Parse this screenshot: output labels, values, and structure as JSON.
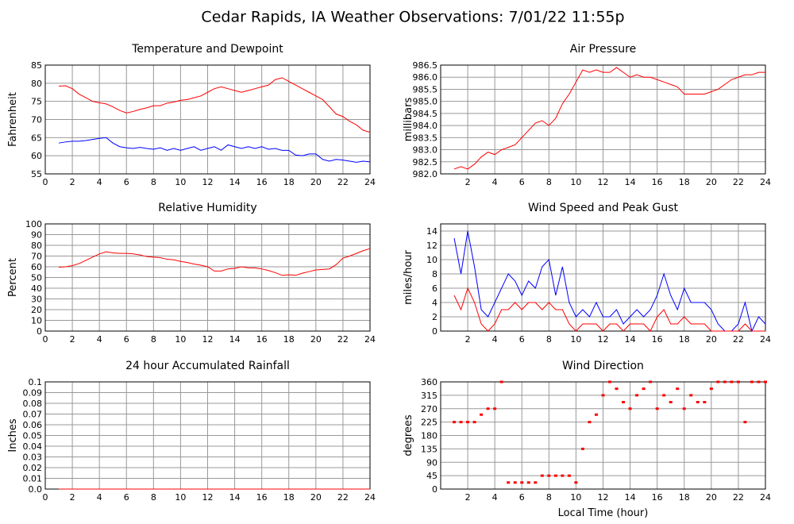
{
  "title": "Cedar Rapids, IA Weather Observations: 7/01/22 11:55p",
  "chart_data": [
    {
      "type": "line",
      "title": "Temperature and Dewpoint",
      "y_label": "Fahrenheit",
      "x": [
        1,
        1.5,
        2,
        2.5,
        3,
        3.5,
        4,
        4.5,
        5,
        5.5,
        6,
        6.5,
        7,
        7.5,
        8,
        8.5,
        9,
        9.5,
        10,
        10.5,
        11,
        11.5,
        12,
        12.5,
        13,
        13.5,
        14,
        14.5,
        15,
        15.5,
        16,
        16.5,
        17,
        17.5,
        18,
        18.5,
        19,
        19.5,
        20,
        20.5,
        21,
        21.5,
        22,
        22.5,
        23,
        23.5,
        24
      ],
      "series": [
        {
          "color": "#ff0000",
          "values": [
            79.2,
            79.3,
            78.5,
            77,
            76,
            75,
            74.6,
            74.3,
            73.5,
            72.5,
            71.8,
            72.2,
            72.8,
            73.2,
            73.8,
            73.8,
            74.5,
            74.8,
            75.3,
            75.5,
            76,
            76.5,
            77.5,
            78.5,
            79,
            78.5,
            78,
            77.5,
            78,
            78.5,
            79,
            79.5,
            81,
            81.5,
            80.5,
            79.5,
            78.5,
            77.5,
            76.5,
            75.5,
            73.5,
            71.5,
            70.8,
            69.5,
            68.5,
            67,
            66.5
          ]
        },
        {
          "color": "#0000ff",
          "values": [
            63.5,
            63.8,
            64,
            64,
            64.2,
            64.5,
            64.8,
            65,
            63.5,
            62.5,
            62.2,
            62,
            62.3,
            62,
            61.8,
            62.2,
            61.5,
            62,
            61.5,
            62,
            62.5,
            61.5,
            62,
            62.5,
            61.5,
            63,
            62.5,
            62,
            62.5,
            62,
            62.5,
            61.8,
            62,
            61.5,
            61.5,
            60.2,
            60,
            60.5,
            60.5,
            59,
            58.5,
            59,
            58.8,
            58.5,
            58.2,
            58.5,
            58.3
          ]
        }
      ],
      "xlim": [
        0,
        24
      ],
      "xticks": [
        0,
        2,
        4,
        6,
        8,
        10,
        12,
        14,
        16,
        18,
        20,
        22,
        24
      ],
      "ylim": [
        55,
        85
      ],
      "yticks": [
        55,
        60,
        65,
        70,
        75,
        80,
        85
      ],
      "grid": true
    },
    {
      "type": "line",
      "title": "Air Pressure",
      "y_label": "millibars",
      "x": [
        1,
        1.5,
        2,
        2.5,
        3,
        3.5,
        4,
        4.5,
        5,
        5.5,
        6,
        6.5,
        7,
        7.5,
        8,
        8.5,
        9,
        9.5,
        10,
        10.5,
        11,
        11.5,
        12,
        12.5,
        13,
        13.5,
        14,
        14.5,
        15,
        15.5,
        16,
        16.5,
        17,
        17.5,
        18,
        18.5,
        19,
        19.5,
        20,
        20.5,
        21,
        21.5,
        22,
        22.5,
        23,
        23.5,
        24
      ],
      "series": [
        {
          "color": "#ff0000",
          "values": [
            982.2,
            982.3,
            982.2,
            982.4,
            982.7,
            982.9,
            982.8,
            983.0,
            983.1,
            983.2,
            983.5,
            983.8,
            984.1,
            984.2,
            984.0,
            984.3,
            984.9,
            985.3,
            985.8,
            986.3,
            986.2,
            986.3,
            986.2,
            986.2,
            986.4,
            986.2,
            986.0,
            986.1,
            986.0,
            986.0,
            985.9,
            985.8,
            985.7,
            985.6,
            985.3,
            985.3,
            985.3,
            985.3,
            985.4,
            985.5,
            985.7,
            985.9,
            986.0,
            986.1,
            986.1,
            986.2,
            986.2
          ]
        }
      ],
      "xlim": [
        0,
        24
      ],
      "xticks": [
        2,
        4,
        6,
        8,
        10,
        12,
        14,
        16,
        18,
        20,
        22,
        24
      ],
      "ylim": [
        982,
        986.5
      ],
      "yticks": [
        {
          "value": 982,
          "label": "982.0"
        },
        982.5,
        {
          "value": 983,
          "label": "983.0"
        },
        983.5,
        {
          "value": 984,
          "label": "984.0"
        },
        984.5,
        {
          "value": 985,
          "label": "985.0"
        },
        985.5,
        {
          "value": 986,
          "label": "986.0"
        },
        986.5
      ],
      "grid": true
    },
    {
      "type": "line",
      "title": "Relative Humidity",
      "y_label": "Percent",
      "x": [
        1,
        1.5,
        2,
        2.5,
        3,
        3.5,
        4,
        4.5,
        5,
        5.5,
        6,
        6.5,
        7,
        7.5,
        8,
        8.5,
        9,
        9.5,
        10,
        10.5,
        11,
        11.5,
        12,
        12.5,
        13,
        13.5,
        14,
        14.5,
        15,
        15.5,
        16,
        16.5,
        17,
        17.5,
        18,
        18.5,
        19,
        19.5,
        20,
        20.5,
        21,
        21.5,
        22,
        22.5,
        23,
        23.5,
        24
      ],
      "series": [
        {
          "color": "#ff0000",
          "values": [
            59.5,
            60,
            61,
            63,
            66,
            69,
            72,
            74,
            73,
            72.5,
            72.5,
            72,
            71,
            69.5,
            69,
            68.5,
            67,
            66.5,
            65,
            64,
            62.5,
            61.5,
            60,
            56,
            56,
            58,
            58.5,
            60,
            59,
            59,
            58,
            56.5,
            54.5,
            52,
            52.5,
            52,
            54,
            55.5,
            57,
            57.5,
            58,
            62,
            68,
            70,
            72.5,
            75,
            77
          ]
        }
      ],
      "xlim": [
        0,
        24
      ],
      "xticks": [
        0,
        2,
        4,
        6,
        8,
        10,
        12,
        14,
        16,
        18,
        20,
        22,
        24
      ],
      "ylim": [
        0,
        100
      ],
      "yticks": [
        0,
        10,
        20,
        30,
        40,
        50,
        60,
        70,
        80,
        90,
        100
      ],
      "grid": true
    },
    {
      "type": "line",
      "title": "Wind Speed and Peak Gust",
      "y_label": "miles/hour",
      "x": [
        1,
        1.5,
        2,
        2.5,
        3,
        3.5,
        4,
        4.5,
        5,
        5.5,
        6,
        6.5,
        7,
        7.5,
        8,
        8.5,
        9,
        9.5,
        10,
        10.5,
        11,
        11.5,
        12,
        12.5,
        13,
        13.5,
        14,
        14.5,
        15,
        15.5,
        16,
        16.5,
        17,
        17.5,
        18,
        18.5,
        19,
        19.5,
        20,
        20.5,
        21,
        21.5,
        22,
        22.5,
        23,
        23.5,
        24
      ],
      "series": [
        {
          "color": "#0000ff",
          "values": [
            13,
            8,
            14,
            9,
            3,
            2,
            4,
            6,
            8,
            7,
            5,
            7,
            6,
            9,
            10,
            5,
            9,
            4,
            2,
            3,
            2,
            4,
            2,
            2,
            3,
            1,
            2,
            3,
            2,
            3,
            5,
            8,
            5,
            3,
            6,
            4,
            4,
            4,
            3,
            1,
            0,
            0,
            1,
            4,
            0,
            2,
            1
          ]
        },
        {
          "color": "#ff0000",
          "values": [
            5,
            3,
            6,
            4,
            1,
            0,
            1,
            3,
            3,
            4,
            3,
            4,
            4,
            3,
            4,
            3,
            3,
            1,
            0,
            1,
            1,
            1,
            0,
            1,
            1,
            0,
            1,
            1,
            1,
            0,
            2,
            3,
            1,
            1,
            2,
            1,
            1,
            1,
            0,
            0,
            0,
            0,
            0,
            1,
            0,
            0,
            0
          ]
        }
      ],
      "xlim": [
        0,
        24
      ],
      "xticks": [
        2,
        4,
        6,
        8,
        10,
        12,
        14,
        16,
        18,
        20,
        22,
        24
      ],
      "ylim": [
        0,
        15
      ],
      "yticks": [
        0,
        2,
        4,
        6,
        8,
        10,
        12,
        14
      ],
      "grid": true
    },
    {
      "type": "line",
      "title": "24 hour Accumulated Rainfall",
      "y_label": "Inches",
      "x": [
        1,
        24
      ],
      "series": [
        {
          "color": "#ff0000",
          "values": [
            0,
            0
          ]
        }
      ],
      "xlim": [
        0,
        24
      ],
      "xticks": [
        0,
        2,
        4,
        6,
        8,
        10,
        12,
        14,
        16,
        18,
        20,
        22,
        24
      ],
      "ylim": [
        0,
        0.1
      ],
      "yticks": [
        {
          "value": 0,
          "label": "0.0"
        },
        0.01,
        0.02,
        0.03,
        0.04,
        0.05,
        0.06,
        0.07,
        0.08,
        0.09,
        0.1
      ],
      "grid": true
    },
    {
      "type": "scatter",
      "title": "Wind Direction",
      "y_label": "degrees",
      "x_label": "Local Time (hour)",
      "x": [
        1,
        1.5,
        2,
        2.5,
        3,
        3.5,
        4,
        4.5,
        5,
        5.5,
        6,
        6.5,
        7,
        7.5,
        8,
        8.5,
        9,
        9.5,
        10,
        10.5,
        11,
        11.5,
        12,
        12.5,
        13,
        13.5,
        14,
        14.5,
        15,
        15.5,
        16,
        16.5,
        17,
        17.5,
        18,
        18.5,
        19,
        19.5,
        20,
        20.5,
        21,
        21.5,
        22,
        22.5,
        23,
        23.5,
        24
      ],
      "series": [
        {
          "color": "#ff0000",
          "values": [
            225,
            225,
            225,
            225,
            250,
            270,
            270,
            360,
            22,
            22,
            22,
            22,
            22,
            45,
            45,
            45,
            45,
            45,
            22,
            135,
            225,
            250,
            315,
            360,
            337,
            292,
            270,
            315,
            337,
            360,
            270,
            315,
            292,
            337,
            270,
            315,
            292,
            292,
            337,
            360,
            360,
            360,
            360,
            225,
            360,
            360,
            360
          ]
        }
      ],
      "xlim": [
        0,
        24
      ],
      "xticks": [
        2,
        4,
        6,
        8,
        10,
        12,
        14,
        16,
        18,
        20,
        22,
        24
      ],
      "ylim": [
        0,
        360
      ],
      "yticks": [
        0,
        45,
        90,
        135,
        180,
        225,
        270,
        315,
        360
      ],
      "grid": true
    }
  ]
}
